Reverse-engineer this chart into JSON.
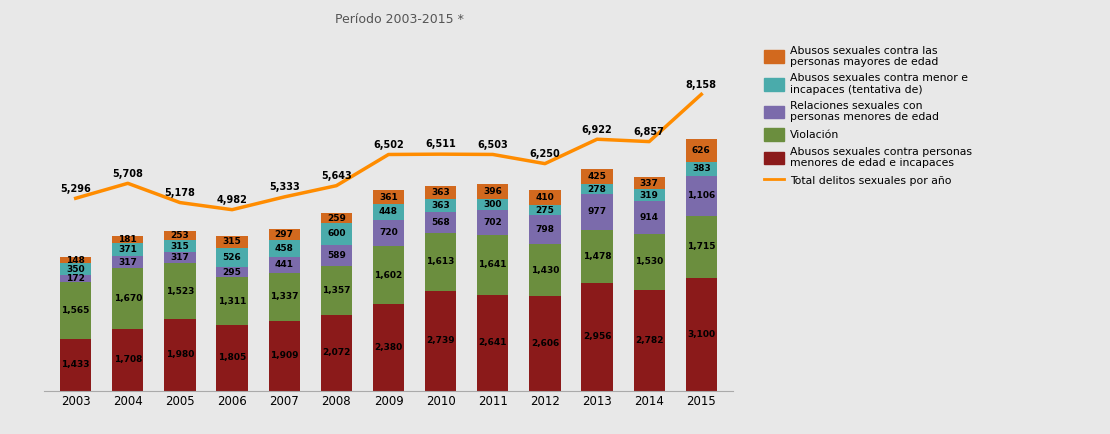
{
  "years": [
    2003,
    2004,
    2005,
    2006,
    2007,
    2008,
    2009,
    2010,
    2011,
    2012,
    2013,
    2014,
    2015
  ],
  "abusos_mayores": [
    1433,
    1708,
    1980,
    1805,
    1909,
    2072,
    2380,
    2739,
    2641,
    2606,
    2956,
    2782,
    3100
  ],
  "violacion": [
    1565,
    1670,
    1523,
    1311,
    1337,
    1357,
    1602,
    1613,
    1641,
    1430,
    1478,
    1530,
    1715
  ],
  "relaciones_menores": [
    172,
    317,
    317,
    295,
    441,
    589,
    720,
    568,
    702,
    798,
    977,
    914,
    1106
  ],
  "abusos_tentativa": [
    350,
    371,
    315,
    526,
    458,
    600,
    448,
    363,
    300,
    275,
    278,
    319,
    383
  ],
  "abusos_personas_mayores": [
    148,
    181,
    253,
    315,
    297,
    259,
    361,
    363,
    396,
    410,
    425,
    337,
    626
  ],
  "total_line": [
    5296,
    5708,
    5178,
    4982,
    5333,
    5643,
    6502,
    6511,
    6503,
    6250,
    6922,
    6857,
    8158
  ],
  "color_abusos_mayores": "#8B1A1A",
  "color_violacion": "#6B8E3E",
  "color_relaciones_menores": "#7B6BAB",
  "color_abusos_tentativa": "#4AABAB",
  "color_abusos_personas_mayores": "#D2691E",
  "color_line": "#FF8C00",
  "title": "Período 2003-2015 *",
  "legend_labels": [
    "Abusos sexuales contra las\npersonas mayores de edad",
    "Abusos sexuales contra menor e\nincapaces (tentativa de)",
    "Relaciones sexuales con\npersonas menores de edad",
    "Violación",
    "Abusos sexuales contra personas\nmenores de edad e incapaces",
    "Total delitos sexuales por año"
  ],
  "background_color": "#E8E8E8",
  "bar_width": 0.6,
  "ylim": [
    0,
    9800
  ],
  "figsize": [
    11.1,
    4.34
  ],
  "dpi": 100
}
